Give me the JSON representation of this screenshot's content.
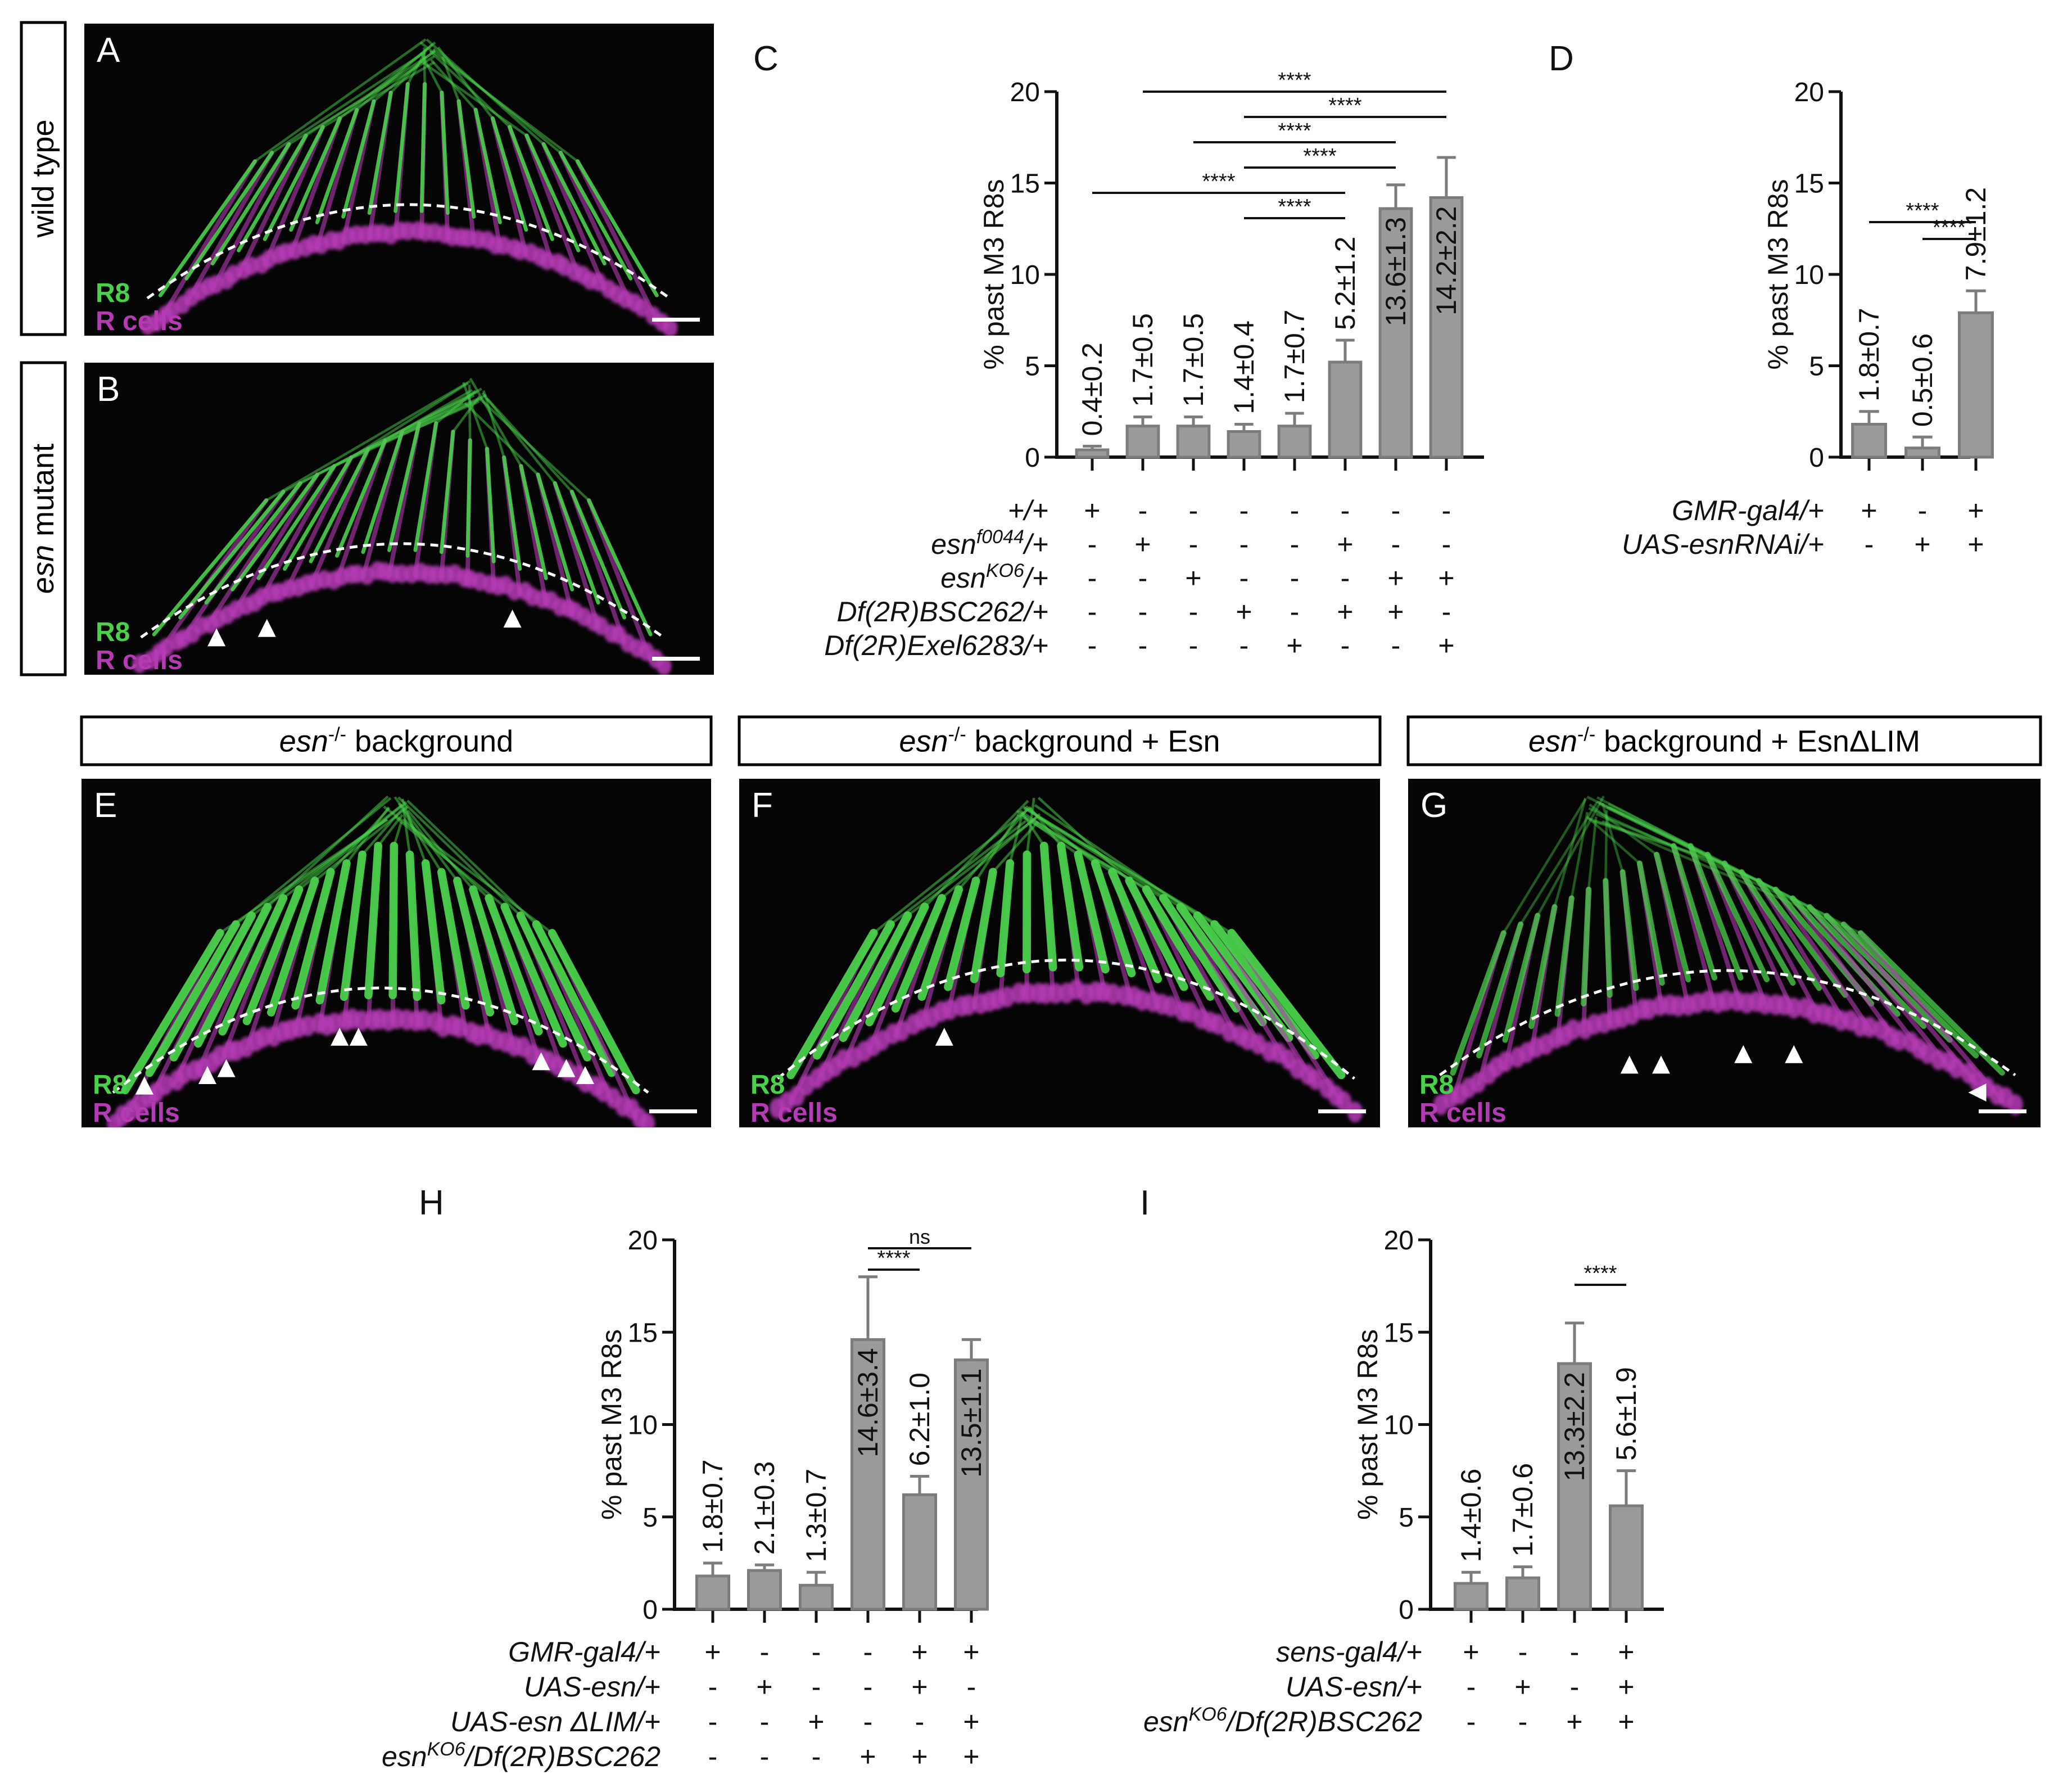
{
  "micro": {
    "A": {
      "panel": "A",
      "side_label": "wild type",
      "c1": "R8",
      "c2": "R cells"
    },
    "B": {
      "panel": "B",
      "side_label_italic": "esn",
      "side_label_rest": " mutant",
      "c1": "R8",
      "c2": "R cells"
    },
    "E": {
      "panel": "E",
      "title_italic": "esn",
      "title_sup": "-/-",
      "title_rest": " background",
      "c1": "R8",
      "c2": "R cells"
    },
    "F": {
      "panel": "F",
      "title_italic": "esn",
      "title_sup": "-/-",
      "title_rest": " background + Esn",
      "c1": "R8",
      "c2": "R cells"
    },
    "G": {
      "panel": "G",
      "title_italic": "esn",
      "title_sup": "-/-",
      "title_rest": " background + EsnΔLIM",
      "c1": "R8",
      "c2": "R cells"
    }
  },
  "colors": {
    "green": "#49d14a",
    "magenta": "#b53bb5",
    "bar": "#9a9a9a",
    "bar_edge": "#7c7c7c"
  },
  "chart_data": [
    {
      "panel": "C",
      "type": "bar",
      "ylabel": "% past M3 R8s",
      "ylim": [
        0,
        20
      ],
      "yticks": [
        0,
        5,
        10,
        15,
        20
      ],
      "values": [
        0.4,
        1.7,
        1.7,
        1.4,
        1.7,
        5.2,
        13.6,
        14.2
      ],
      "errors": [
        0.2,
        0.5,
        0.5,
        0.4,
        0.7,
        1.2,
        1.3,
        2.2
      ],
      "labels": [
        "0.4±0.2",
        "1.7±0.5",
        "1.7±0.5",
        "1.4±0.4",
        "1.7±0.7",
        "5.2±1.2",
        "13.6±1.3",
        "14.2±2.2"
      ],
      "genotype_rows": [
        {
          "name": "+/+",
          "signs": [
            "+",
            "-",
            "-",
            "-",
            "-",
            "-",
            "-",
            "-"
          ]
        },
        {
          "name": "esn",
          "sup": "f0044",
          "tail": "/+",
          "signs": [
            "-",
            "+",
            "-",
            "-",
            "-",
            "+",
            "-",
            "-"
          ]
        },
        {
          "name": "esn",
          "sup": "KO6",
          "tail": "/+",
          "signs": [
            "-",
            "-",
            "+",
            "-",
            "-",
            "-",
            "+",
            "+"
          ]
        },
        {
          "name": "Df(2R)BSC262/+",
          "signs": [
            "-",
            "-",
            "-",
            "+",
            "-",
            "+",
            "+",
            "-"
          ]
        },
        {
          "name": "Df(2R)Exel6283/+",
          "signs": [
            "-",
            "-",
            "-",
            "-",
            "+",
            "-",
            "-",
            "+"
          ]
        }
      ],
      "significance": [
        {
          "from": 1,
          "to": 7,
          "label": "****"
        },
        {
          "from": 3,
          "to": 7,
          "label": "****"
        },
        {
          "from": 2,
          "to": 6,
          "label": "****"
        },
        {
          "from": 3,
          "to": 6,
          "label": "****"
        },
        {
          "from": 0,
          "to": 5,
          "label": "****"
        },
        {
          "from": 3,
          "to": 5,
          "label": "****"
        }
      ]
    },
    {
      "panel": "D",
      "type": "bar",
      "ylabel": "% past M3 R8s",
      "ylim": [
        0,
        20
      ],
      "yticks": [
        0,
        5,
        10,
        15,
        20
      ],
      "values": [
        1.8,
        0.5,
        7.9
      ],
      "errors": [
        0.7,
        0.6,
        1.2
      ],
      "labels": [
        "1.8±0.7",
        "0.5±0.6",
        "7.9±1.2"
      ],
      "genotype_rows": [
        {
          "name": "GMR-gal4/+",
          "signs": [
            "+",
            "-",
            "+"
          ]
        },
        {
          "name": "UAS-esnRNAi/+",
          "signs": [
            "-",
            "+",
            "+"
          ]
        }
      ],
      "significance": [
        {
          "from": 0,
          "to": 2,
          "label": "****"
        },
        {
          "from": 1,
          "to": 2,
          "label": "****"
        }
      ]
    },
    {
      "panel": "H",
      "type": "bar",
      "ylabel": "% past M3 R8s",
      "ylim": [
        0,
        20
      ],
      "yticks": [
        0,
        5,
        10,
        15,
        20
      ],
      "values": [
        1.8,
        2.1,
        1.3,
        14.6,
        6.2,
        13.5
      ],
      "errors": [
        0.7,
        0.3,
        0.7,
        3.4,
        1.0,
        1.1
      ],
      "labels": [
        "1.8±0.7",
        "2.1±0.3",
        "1.3±0.7",
        "14.6±3.4",
        "6.2±1.0",
        "13.5±1.1"
      ],
      "genotype_rows": [
        {
          "name": "GMR-gal4/+",
          "signs": [
            "+",
            "-",
            "-",
            "-",
            "+",
            "+"
          ]
        },
        {
          "name": "UAS-esn/+",
          "signs": [
            "-",
            "+",
            "-",
            "-",
            "+",
            "-"
          ]
        },
        {
          "name": "UAS-esn ΔLIM/+",
          "signs": [
            "-",
            "-",
            "+",
            "-",
            "-",
            "+"
          ]
        },
        {
          "name": "esn",
          "sup": "KO6",
          "tail": "/Df(2R)BSC262",
          "signs": [
            "-",
            "-",
            "-",
            "+",
            "+",
            "+"
          ]
        }
      ],
      "significance": [
        {
          "from": 3,
          "to": 5,
          "label": "ns"
        },
        {
          "from": 3,
          "to": 4,
          "label": "****"
        }
      ]
    },
    {
      "panel": "I",
      "type": "bar",
      "ylabel": "% past M3 R8s",
      "ylim": [
        0,
        20
      ],
      "yticks": [
        0,
        5,
        10,
        15,
        20
      ],
      "values": [
        1.4,
        1.7,
        13.3,
        5.6
      ],
      "errors": [
        0.6,
        0.6,
        2.2,
        1.9
      ],
      "labels": [
        "1.4±0.6",
        "1.7±0.6",
        "13.3±2.2",
        "5.6±1.9"
      ],
      "genotype_rows": [
        {
          "name": "sens-gal4/+",
          "signs": [
            "+",
            "-",
            "-",
            "+"
          ]
        },
        {
          "name": "UAS-esn/+",
          "signs": [
            "-",
            "+",
            "-",
            "+"
          ]
        },
        {
          "name": "esn",
          "sup": "KO6",
          "tail": "/Df(2R)BSC262",
          "signs": [
            "-",
            "-",
            "+",
            "+"
          ]
        }
      ],
      "significance": [
        {
          "from": 2,
          "to": 3,
          "label": "****"
        }
      ]
    }
  ]
}
